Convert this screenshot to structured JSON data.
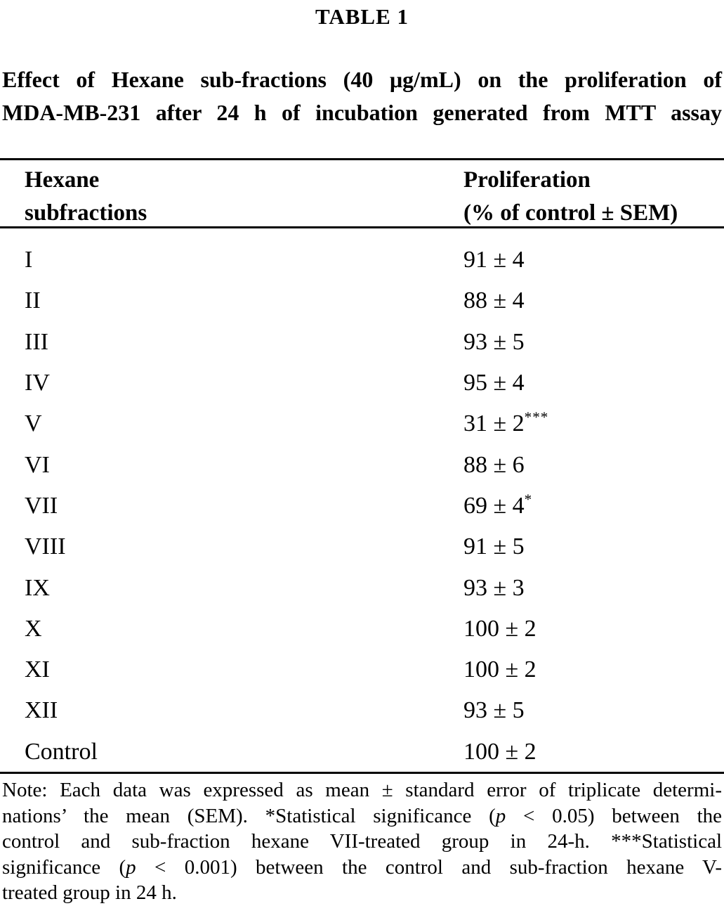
{
  "page": {
    "background_color": "#ffffff",
    "text_color": "#000000"
  },
  "table_label": "TABLE 1",
  "caption": {
    "line1": "Effect of Hexane sub-fractions (40 μg/mL) on the proliferation of",
    "line2": "MDA-MB-231 after 24 h of incubation generated from MTT assay"
  },
  "table": {
    "header": {
      "col1": [
        "Hexane",
        "subfractions"
      ],
      "col2": [
        "Proliferation",
        "(% of control ± SEM)"
      ]
    },
    "rows": [
      {
        "fraction": "I",
        "value": "91 ± 4",
        "sig": ""
      },
      {
        "fraction": "II",
        "value": "88 ± 4",
        "sig": ""
      },
      {
        "fraction": "III",
        "value": "93 ± 5",
        "sig": ""
      },
      {
        "fraction": "IV",
        "value": "95 ± 4",
        "sig": ""
      },
      {
        "fraction": "V",
        "value": "31 ± 2",
        "sig": "***"
      },
      {
        "fraction": "VI",
        "value": "88 ± 6",
        "sig": ""
      },
      {
        "fraction": "VII",
        "value": "69 ± 4",
        "sig": "*"
      },
      {
        "fraction": "VIII",
        "value": "91 ± 5",
        "sig": ""
      },
      {
        "fraction": "IX",
        "value": "93 ± 3",
        "sig": ""
      },
      {
        "fraction": "X",
        "value": "100 ± 2",
        "sig": ""
      },
      {
        "fraction": "XI",
        "value": "100 ± 2",
        "sig": ""
      },
      {
        "fraction": "XII",
        "value": "93 ± 5",
        "sig": ""
      },
      {
        "fraction": "Control",
        "value": "100 ± 2",
        "sig": ""
      }
    ]
  },
  "note": {
    "lines": [
      {
        "segments": [
          {
            "t": "Note: Each data was expressed as mean ± standard error of triplicate determi-",
            "i": false
          }
        ],
        "last": false
      },
      {
        "segments": [
          {
            "t": "nations’ the mean (SEM). *Statistical significance (",
            "i": false
          },
          {
            "t": "p",
            "i": true
          },
          {
            "t": " < 0.05) between the",
            "i": false
          }
        ],
        "last": false
      },
      {
        "segments": [
          {
            "t": "control and sub-fraction hexane VII-treated group in 24-h. ***Statistical",
            "i": false
          }
        ],
        "last": false
      },
      {
        "segments": [
          {
            "t": "significance (",
            "i": false
          },
          {
            "t": "p",
            "i": true
          },
          {
            "t": " < 0.001) between the control and sub-fraction hexane V-",
            "i": false
          }
        ],
        "last": false
      },
      {
        "segments": [
          {
            "t": "treated group in 24 h.",
            "i": false
          }
        ],
        "last": true
      }
    ]
  }
}
